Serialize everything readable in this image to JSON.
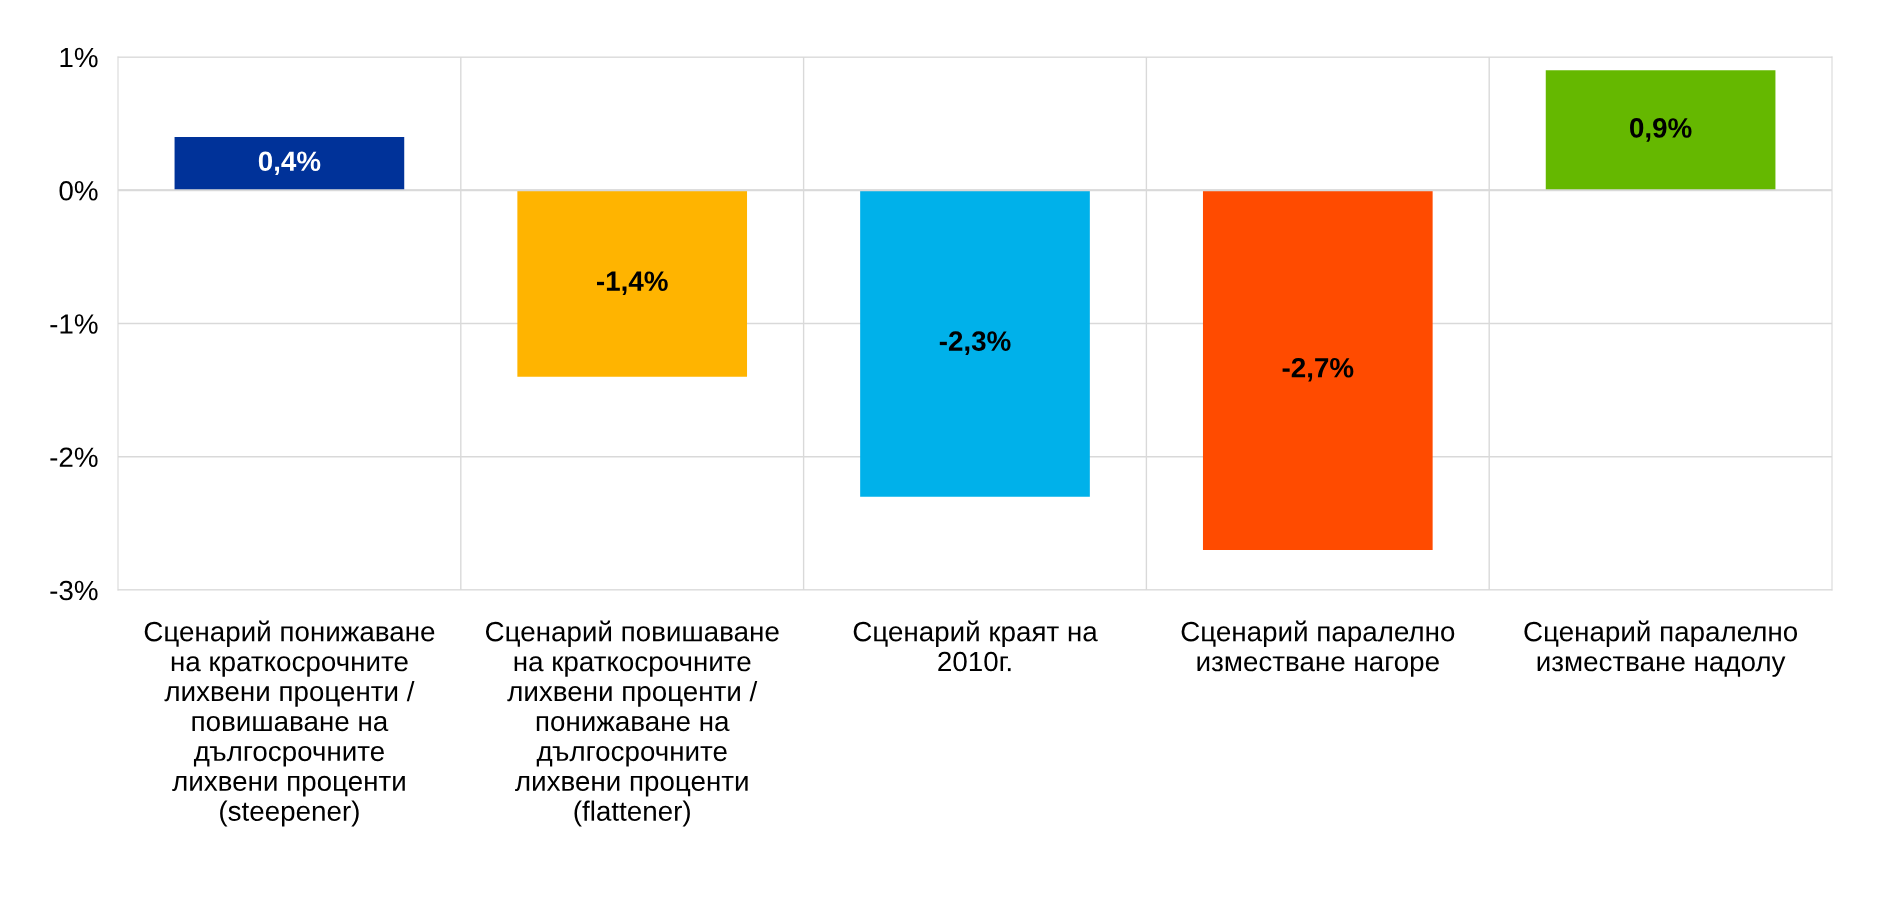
{
  "chart_data": {
    "type": "bar",
    "categories": [
      "Сценарий понижаване\nна краткосрочните\nлихвени проценти /\nповишаване на\nдългосрочните\nлихвени проценти\n(steepener)",
      "Сценарий повишаване\nна краткосрочните\nлихвени проценти /\nпонижаване на\nдългосрочните\nлихвени проценти\n(flattener)",
      "Сценарий краят на\n2010г.",
      "Сценарий паралелно\nизместване нагоре",
      "Сценарий паралелно\nизместване надолу"
    ],
    "values": [
      0.4,
      -1.4,
      -2.3,
      -2.7,
      0.9
    ],
    "colors": [
      "#003299",
      "#ffb400",
      "#00b1ea",
      "#ff4b00",
      "#65b800"
    ],
    "value_labels": [
      "0,4%",
      "-1,4%",
      "-2,3%",
      "-2,7%",
      "0,9%"
    ],
    "ylim": [
      -3,
      1
    ],
    "yticks": [
      {
        "value": -3,
        "label": "-3%"
      },
      {
        "value": -2,
        "label": "-2%"
      },
      {
        "value": -1,
        "label": "-1%"
      },
      {
        "value": 0,
        "label": "0%"
      },
      {
        "value": 1,
        "label": "1%"
      }
    ],
    "grid": true,
    "legend": false
  }
}
